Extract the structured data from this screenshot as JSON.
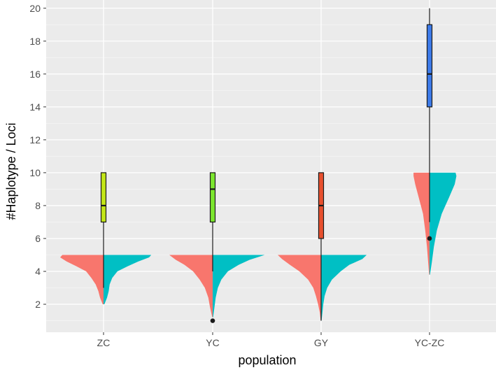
{
  "chart_data": {
    "type": "split-violin-boxplot",
    "title": "",
    "xlabel": "population",
    "ylabel": "#Haplotype / Loci",
    "ylim": [
      0.3,
      20.5
    ],
    "yticks": [
      2,
      4,
      6,
      8,
      10,
      12,
      14,
      16,
      18,
      20
    ],
    "categories": [
      "ZC",
      "YC",
      "GY",
      "YC-ZC"
    ],
    "violin_colors": {
      "left": "#F8766D",
      "right": "#00BFC4"
    },
    "box_colors": [
      "#C3E617",
      "#7CE62E",
      "#E8502E",
      "#3D7BEA"
    ],
    "boxes": [
      {
        "population": "ZC",
        "whisker_low": 3,
        "q1": 7,
        "median": 8,
        "q3": 10,
        "whisker_high": 10,
        "outliers": []
      },
      {
        "population": "YC",
        "whisker_low": 4,
        "q1": 7,
        "median": 9,
        "q3": 10,
        "whisker_high": 10,
        "outliers": [
          1
        ]
      },
      {
        "population": "GY",
        "whisker_low": 1,
        "q1": 6,
        "median": 8,
        "q3": 10,
        "whisker_high": 10,
        "outliers": []
      },
      {
        "population": "YC-ZC",
        "whisker_low": 7,
        "q1": 14,
        "median": 16,
        "q3": 19,
        "whisker_high": 20,
        "outliers": [
          6
        ]
      }
    ],
    "violins": [
      {
        "population": "ZC",
        "left": [
          [
            2,
            0.02
          ],
          [
            2.4,
            0.08
          ],
          [
            2.8,
            0.12
          ],
          [
            3.2,
            0.18
          ],
          [
            3.6,
            0.28
          ],
          [
            4,
            0.4
          ],
          [
            4.3,
            0.62
          ],
          [
            4.6,
            0.85
          ],
          [
            4.85,
            1.0
          ],
          [
            5,
            0.95
          ]
        ],
        "right": [
          [
            2,
            0.02
          ],
          [
            2.4,
            0.08
          ],
          [
            2.8,
            0.12
          ],
          [
            3.2,
            0.14
          ],
          [
            3.6,
            0.2
          ],
          [
            4,
            0.32
          ],
          [
            4.3,
            0.55
          ],
          [
            4.6,
            0.8
          ],
          [
            4.85,
            1.05
          ],
          [
            5,
            1.1
          ]
        ]
      },
      {
        "population": "YC",
        "left": [
          [
            1.2,
            0.01
          ],
          [
            1.8,
            0.06
          ],
          [
            2.4,
            0.1
          ],
          [
            3,
            0.18
          ],
          [
            3.5,
            0.3
          ],
          [
            4,
            0.45
          ],
          [
            4.4,
            0.65
          ],
          [
            4.7,
            0.85
          ],
          [
            5,
            1.0
          ]
        ],
        "right": [
          [
            1.2,
            0.01
          ],
          [
            1.8,
            0.04
          ],
          [
            2.4,
            0.07
          ],
          [
            3,
            0.12
          ],
          [
            3.5,
            0.2
          ],
          [
            4,
            0.35
          ],
          [
            4.4,
            0.6
          ],
          [
            4.7,
            0.85
          ],
          [
            5,
            1.2
          ]
        ]
      },
      {
        "population": "GY",
        "left": [
          [
            1,
            0.01
          ],
          [
            1.5,
            0.03
          ],
          [
            2,
            0.07
          ],
          [
            2.5,
            0.12
          ],
          [
            3,
            0.18
          ],
          [
            3.5,
            0.3
          ],
          [
            4,
            0.5
          ],
          [
            4.4,
            0.72
          ],
          [
            4.75,
            0.9
          ],
          [
            5,
            1.0
          ]
        ],
        "right": [
          [
            1,
            0.01
          ],
          [
            1.5,
            0.03
          ],
          [
            2,
            0.05
          ],
          [
            2.5,
            0.08
          ],
          [
            3,
            0.14
          ],
          [
            3.5,
            0.25
          ],
          [
            4,
            0.45
          ],
          [
            4.4,
            0.65
          ],
          [
            4.75,
            0.95
          ],
          [
            5,
            1.05
          ]
        ]
      },
      {
        "population": "YC-ZC",
        "left": [
          [
            3.8,
            0.01
          ],
          [
            4.5,
            0.03
          ],
          [
            5.5,
            0.06
          ],
          [
            6.5,
            0.1
          ],
          [
            7.5,
            0.15
          ],
          [
            8.5,
            0.25
          ],
          [
            9.3,
            0.33
          ],
          [
            9.8,
            0.37
          ],
          [
            10,
            0.37
          ]
        ],
        "right": [
          [
            3.8,
            0.01
          ],
          [
            4.5,
            0.05
          ],
          [
            5.5,
            0.1
          ],
          [
            6.5,
            0.17
          ],
          [
            7.5,
            0.28
          ],
          [
            8.5,
            0.45
          ],
          [
            9.3,
            0.58
          ],
          [
            9.8,
            0.62
          ],
          [
            10,
            0.6
          ]
        ]
      }
    ]
  }
}
